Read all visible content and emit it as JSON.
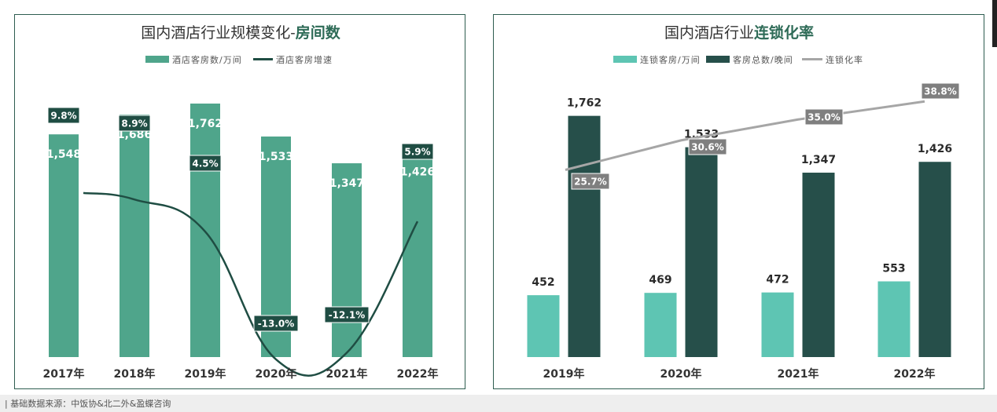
{
  "footer": {
    "source": "| 基础数据来源：中饭协&北二外&盈蝶咨询"
  },
  "colors": {
    "border": "#2e5d50",
    "bar_left": "#4fa58b",
    "line_dark": "#1f4d43",
    "bar_chain": "#5ec5b3",
    "bar_total": "#264f4a",
    "line_gray": "#a6a6a6",
    "label_gray": "#7f7f7f"
  },
  "chart_data": [
    {
      "type": "bar",
      "title_main": "国内酒店行业规模变化-",
      "title_em": "房间数",
      "categories": [
        "2017年",
        "2018年",
        "2019年",
        "2020年",
        "2021年",
        "2022年"
      ],
      "series": [
        {
          "name": "酒店客房数/万间",
          "type": "bar",
          "values": [
            1548,
            1686,
            1762,
            1533,
            1347,
            1426
          ],
          "labels": [
            "1,548",
            "1,686",
            "1,762",
            "1,533",
            "1,347",
            "1,426"
          ]
        },
        {
          "name": "酒店客房增速",
          "type": "line",
          "values": [
            9.8,
            8.9,
            4.5,
            -13.0,
            -12.1,
            5.9
          ],
          "labels": [
            "9.8%",
            "8.9%",
            "4.5%",
            "-13.0%",
            "-12.1%",
            "5.9%"
          ]
        }
      ]
    },
    {
      "type": "bar",
      "title_main": "国内酒店行业",
      "title_em": "连锁化率",
      "categories": [
        "2019年",
        "2020年",
        "2021年",
        "2022年"
      ],
      "series": [
        {
          "name": "连锁客房/万间",
          "type": "bar",
          "values": [
            452,
            469,
            472,
            553
          ],
          "labels": [
            "452",
            "469",
            "472",
            "553"
          ]
        },
        {
          "name": "客房总数/晚间",
          "type": "bar",
          "values": [
            1762,
            1533,
            1347,
            1426
          ],
          "labels": [
            "1,762",
            "1,533",
            "1,347",
            "1,426"
          ]
        },
        {
          "name": "连锁化率",
          "type": "line",
          "values": [
            25.7,
            30.6,
            35.0,
            38.8
          ],
          "labels": [
            "25.7%",
            "30.6%",
            "35.0%",
            "38.8%"
          ]
        }
      ]
    }
  ]
}
